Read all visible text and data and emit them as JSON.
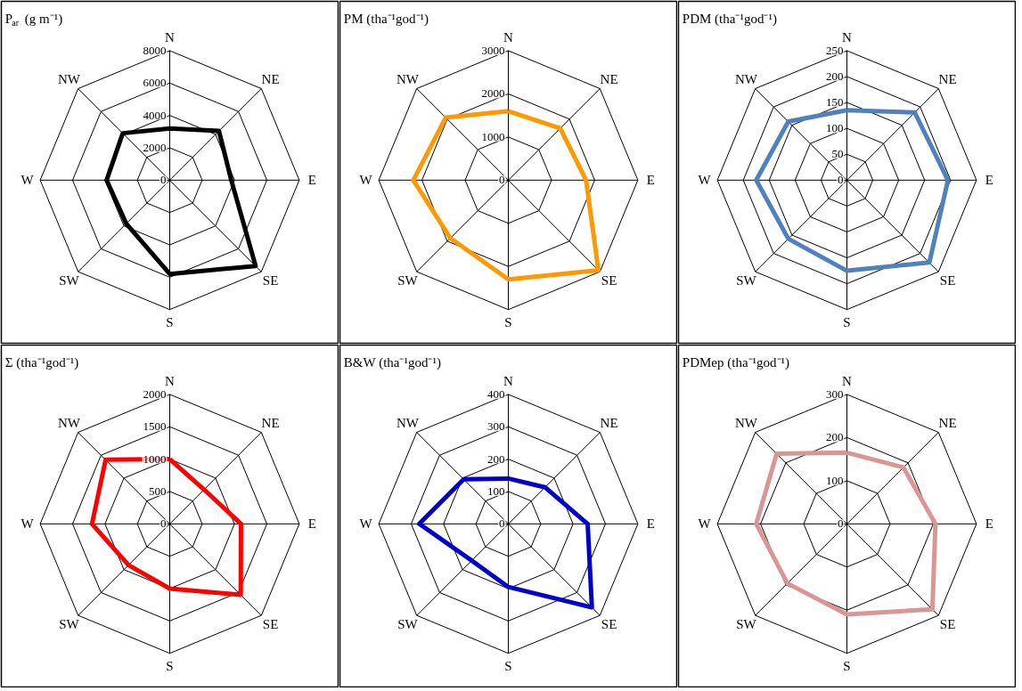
{
  "chart_data": [
    {
      "type": "radar",
      "title": "P$_{ar}$ (g m⁻¹)",
      "categories": [
        "N",
        "NE",
        "E",
        "SE",
        "S",
        "SW",
        "W",
        "NW"
      ],
      "ylim": [
        0,
        8000
      ],
      "yticks": [
        0,
        2000,
        4000,
        6000,
        8000
      ],
      "grid": true,
      "series": [
        {
          "color": "#000000",
          "values": [
            3200,
            4300,
            3800,
            7500,
            5800,
            3800,
            3900,
            4100
          ]
        }
      ]
    },
    {
      "type": "radar",
      "title": "PM (tha⁻¹god⁻¹)",
      "categories": [
        "N",
        "NE",
        "E",
        "SE",
        "S",
        "SW",
        "W",
        "NW"
      ],
      "ylim": [
        0,
        3000
      ],
      "yticks": [
        0,
        1000,
        2000,
        3000
      ],
      "grid": true,
      "series": [
        {
          "color": "#ff9900",
          "values": [
            1600,
            1700,
            1800,
            2950,
            2300,
            1900,
            2200,
            2050
          ]
        }
      ]
    },
    {
      "type": "radar",
      "title": "PDM (tha⁻¹god⁻¹)",
      "categories": [
        "N",
        "NE",
        "E",
        "SE",
        "S",
        "SW",
        "W",
        "NW"
      ],
      "ylim": [
        0,
        250
      ],
      "yticks": [
        0,
        50,
        100,
        150,
        200,
        250
      ],
      "grid": true,
      "series": [
        {
          "color": "#4f81bd",
          "values": [
            135,
            185,
            195,
            225,
            175,
            160,
            175,
            160
          ]
        }
      ]
    },
    {
      "type": "radar",
      "title": "Σ (tha⁻¹god⁻¹)",
      "categories": [
        "N",
        "NE",
        "E",
        "SE",
        "S",
        "SW",
        "W",
        "NW"
      ],
      "ylim": [
        0,
        2000
      ],
      "yticks": [
        0,
        500,
        1000,
        1500,
        2000
      ],
      "grid": true,
      "series": [
        {
          "color": "#ff0000",
          "values": [
            1000,
            750,
            1100,
            1550,
            1000,
            900,
            1200,
            1400
          ]
        }
      ]
    },
    {
      "type": "radar",
      "title": "B&W (tha⁻¹god⁻¹)",
      "categories": [
        "N",
        "NE",
        "E",
        "SE",
        "S",
        "SW",
        "W",
        "NW"
      ],
      "ylim": [
        0,
        400
      ],
      "yticks": [
        0,
        100,
        200,
        300,
        400
      ],
      "grid": true,
      "series": [
        {
          "color": "#0000cc",
          "values": [
            140,
            160,
            245,
            365,
            195,
            160,
            275,
            195
          ]
        }
      ]
    },
    {
      "type": "radar",
      "title": "PDMep (tha⁻¹god⁻¹)",
      "categories": [
        "N",
        "NE",
        "E",
        "SE",
        "S",
        "SW",
        "W",
        "NW"
      ],
      "ylim": [
        0,
        300
      ],
      "yticks": [
        0,
        100,
        200,
        300
      ],
      "grid": true,
      "series": [
        {
          "color": "#d99694",
          "values": [
            165,
            185,
            205,
            280,
            210,
            195,
            210,
            230
          ]
        }
      ]
    }
  ]
}
